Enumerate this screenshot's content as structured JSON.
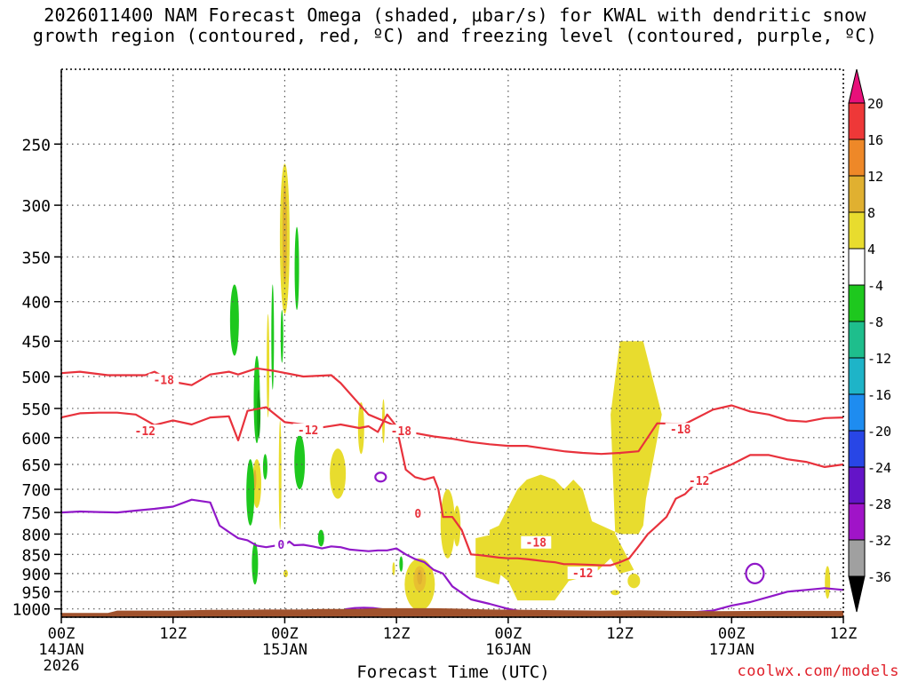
{
  "header": {
    "title_line1": "2026011400 NAM Forecast Omega (shaded, μbar/s) for KWAL with dendritic snow",
    "title_line2": "growth region (contoured, red, ºC) and freezing level (contoured, purple, ºC)"
  },
  "footer": {
    "xaxis_title": "Forecast Time (UTC)",
    "credit": "coolwx.com/models"
  },
  "chart_data": {
    "type": "heatmap",
    "title": "2026011400 NAM Forecast Omega (shaded, μbar/s) for KWAL with dendritic snow growth region (contoured, red, ºC) and freezing level (contoured, purple, ºC)",
    "xlabel": "Forecast Time (UTC)",
    "ylabel": "",
    "xlim_hours": [
      0,
      84
    ],
    "ylim_hPa": [
      1025,
      200
    ],
    "y_scale": "log-pressure",
    "grid": true,
    "x_ticks": [
      {
        "hour": 0,
        "line1": "00Z",
        "line2": "14JAN",
        "line3": "2026"
      },
      {
        "hour": 12,
        "line1": "12Z",
        "line2": "",
        "line3": ""
      },
      {
        "hour": 24,
        "line1": "00Z",
        "line2": "15JAN",
        "line3": ""
      },
      {
        "hour": 36,
        "line1": "12Z",
        "line2": "",
        "line3": ""
      },
      {
        "hour": 48,
        "line1": "00Z",
        "line2": "16JAN",
        "line3": ""
      },
      {
        "hour": 60,
        "line1": "12Z",
        "line2": "",
        "line3": ""
      },
      {
        "hour": 72,
        "line1": "00Z",
        "line2": "17JAN",
        "line3": ""
      },
      {
        "hour": 84,
        "line1": "12Z",
        "line2": "",
        "line3": ""
      }
    ],
    "y_ticks": [
      250,
      300,
      350,
      400,
      450,
      500,
      550,
      600,
      650,
      700,
      750,
      800,
      850,
      900,
      950,
      1000
    ],
    "colorbar": {
      "labels": [
        "20",
        "16",
        "12",
        "8",
        "4",
        "-4",
        "-8",
        "-12",
        "-16",
        "-20",
        "-24",
        "-28",
        "-32",
        "-36"
      ],
      "colors": [
        "#e8107a",
        "#ee3838",
        "#ee8828",
        "#e0b030",
        "#e8dc2e",
        "#ffffff",
        "#1ec81e",
        "#1ebe8c",
        "#1eb4c8",
        "#1e8cf0",
        "#2846e6",
        "#6414c8",
        "#a014c8",
        "#a0a0a0",
        "#000000"
      ]
    },
    "contour_labels": [
      {
        "text": "-18",
        "hour": 11,
        "p": 505,
        "color": "#e8323c"
      },
      {
        "text": "-12",
        "hour": 9,
        "p": 588,
        "color": "#e8323c"
      },
      {
        "text": "-12",
        "hour": 26.5,
        "p": 586,
        "color": "#e8323c"
      },
      {
        "text": "-18",
        "hour": 36.5,
        "p": 588,
        "color": "#e8323c"
      },
      {
        "text": "-18",
        "hour": 66.5,
        "p": 585,
        "color": "#e8323c"
      },
      {
        "text": "-12",
        "hour": 68.5,
        "p": 682,
        "color": "#e8323c"
      },
      {
        "text": "-18",
        "hour": 51,
        "p": 820,
        "color": "#e8323c"
      },
      {
        "text": "-12",
        "hour": 56,
        "p": 898,
        "color": "#e8323c"
      },
      {
        "text": "0",
        "hour": 23.6,
        "p": 825,
        "color": "#9018c8"
      },
      {
        "text": "0",
        "hour": 38.3,
        "p": 752,
        "color": "#e8323c"
      }
    ],
    "series": [
      {
        "name": "-18",
        "x": [
          0,
          2,
          5,
          9,
          10,
          12,
          14,
          16,
          18,
          19,
          21,
          23,
          26,
          29,
          30,
          33,
          36,
          38,
          40,
          42,
          44,
          46,
          48,
          50,
          52,
          54,
          56,
          58,
          60,
          62,
          64,
          67,
          70,
          72,
          74,
          76,
          78,
          80,
          82,
          84
        ],
        "y": [
          495,
          493,
          498,
          498,
          493,
          508,
          513,
          497,
          493,
          497,
          488,
          492,
          500,
          498,
          510,
          560,
          580,
          592,
          598,
          602,
          608,
          612,
          615,
          615,
          620,
          625,
          628,
          630,
          628,
          625,
          575,
          576,
          552,
          545,
          555,
          560,
          570,
          572,
          566,
          565
        ]
      },
      {
        "name": "-12",
        "x": [
          0,
          2,
          4,
          6,
          8,
          10,
          12,
          14,
          16,
          18,
          19,
          20,
          22,
          24,
          26,
          28,
          30,
          32,
          33,
          34,
          35,
          36,
          37,
          38,
          39,
          40,
          40.5,
          41,
          42,
          43,
          44,
          45,
          46,
          47,
          48,
          49,
          50,
          51,
          52,
          53,
          54,
          55,
          56,
          57,
          58,
          59,
          60,
          61,
          62,
          63,
          64,
          65,
          66,
          67,
          68,
          70,
          72,
          74,
          76,
          78,
          80,
          82,
          84
        ],
        "y": [
          565,
          558,
          557,
          557,
          560,
          578,
          570,
          577,
          565,
          563,
          605,
          554,
          548,
          573,
          577,
          582,
          577,
          583,
          580,
          590,
          560,
          580,
          660,
          675,
          680,
          675,
          700,
          760,
          760,
          790,
          850,
          852,
          855,
          858,
          860,
          860,
          862,
          865,
          868,
          870,
          875,
          875,
          876,
          877,
          878,
          878,
          870,
          860,
          830,
          800,
          780,
          760,
          720,
          710,
          690,
          665,
          650,
          632,
          632,
          640,
          645,
          655,
          650
        ]
      },
      {
        "name": "0 freezing level",
        "x": [
          0,
          2,
          4,
          6,
          8,
          10,
          12,
          14,
          16,
          17,
          18,
          19,
          20,
          21,
          22,
          23,
          23.5,
          24,
          24.5,
          25,
          26,
          27,
          28,
          29,
          30,
          31,
          32,
          33,
          34,
          35,
          36,
          37,
          38,
          39,
          40,
          41,
          42,
          44,
          46,
          48,
          50,
          52,
          54,
          56,
          58,
          60,
          62,
          64,
          66,
          68,
          70,
          72,
          74,
          76,
          78,
          80,
          82,
          84
        ],
        "y": [
          750,
          748,
          749,
          750,
          746,
          742,
          737,
          722,
          728,
          780,
          795,
          810,
          815,
          828,
          832,
          828,
          822,
          826,
          818,
          827,
          826,
          830,
          835,
          830,
          832,
          838,
          840,
          842,
          840,
          840,
          835,
          850,
          862,
          870,
          890,
          900,
          935,
          972,
          985,
          1000,
          1010,
          1010,
          1010,
          1010,
          1010,
          1010,
          1010,
          1010,
          1010,
          1010,
          1005,
          990,
          980,
          965,
          950,
          945,
          940,
          945
        ]
      }
    ]
  }
}
